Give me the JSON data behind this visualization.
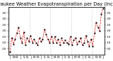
{
  "title": "Milwaukee Weather Evapotranspiration per Day (Inches)",
  "values": [
    0.02,
    0.14,
    0.09,
    0.13,
    0.18,
    0.23,
    0.14,
    0.1,
    0.19,
    0.08,
    0.14,
    0.11,
    0.16,
    0.1,
    0.13,
    0.1,
    0.08,
    0.14,
    0.11,
    0.13,
    0.21,
    0.17,
    0.13,
    0.1,
    0.15,
    0.1,
    0.15,
    0.1,
    0.13,
    0.08,
    0.14,
    0.1,
    0.12,
    0.1,
    0.09,
    0.15,
    0.08,
    0.12,
    0.14,
    0.09,
    0.11,
    0.14,
    0.08,
    0.1,
    0.16,
    0.11,
    0.07,
    0.13,
    0.07,
    0.18,
    0.27,
    0.23,
    0.2,
    0.34,
    0.39
  ],
  "line_color": "#cc0000",
  "marker_color": "#000000",
  "bg_color": "#ffffff",
  "grid_color": "#999999",
  "ylim": [
    0.0,
    0.4
  ],
  "yticks": [
    0.05,
    0.1,
    0.15,
    0.2,
    0.25,
    0.3,
    0.35
  ],
  "ytick_labels": [
    ".05",
    ".10",
    ".15",
    ".20",
    ".25",
    ".30",
    ".35"
  ],
  "n_per_group": 12,
  "n_groups": 5,
  "title_fontsize": 4.8,
  "tick_fontsize": 3.0
}
